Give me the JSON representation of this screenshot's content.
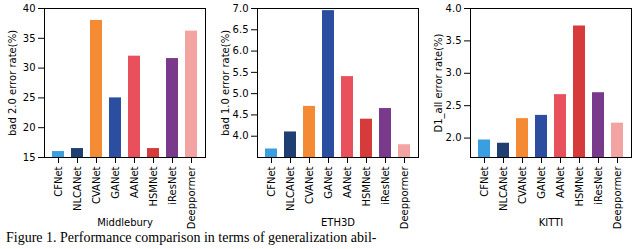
{
  "caption": "Figure 1. Performance comparison in terms of generalization abil-",
  "chart_data": [
    {
      "type": "bar",
      "x_label": "Middlebury",
      "y_label": "bad 2.0 error rate(%)",
      "categories": [
        "CFNet",
        "NLCANet",
        "CVANet",
        "GANet",
        "AANet",
        "HSMNet",
        "iResNet",
        "Deeppormer"
      ],
      "values": [
        16.0,
        16.5,
        38.0,
        25.0,
        32.0,
        16.5,
        31.6,
        36.2
      ],
      "colors": [
        "#3a9fe0",
        "#1f3f73",
        "#f58a35",
        "#2b4ea0",
        "#e8505b",
        "#d63a3a",
        "#7a3a8c",
        "#f4a3a3"
      ],
      "ylim": [
        15,
        40
      ],
      "yticks": [
        15,
        20,
        25,
        30,
        35,
        40
      ],
      "grid": false
    },
    {
      "type": "bar",
      "x_label": "ETH3D",
      "y_label": "bad 1.0 error rate(%)",
      "categories": [
        "CFNet",
        "NLCANet",
        "CVANet",
        "GANet",
        "AANet",
        "HSMNet",
        "iResNet",
        "Deeppormer"
      ],
      "values": [
        3.7,
        4.1,
        4.7,
        6.95,
        5.4,
        4.4,
        4.65,
        3.8
      ],
      "colors": [
        "#3a9fe0",
        "#1f3f73",
        "#f58a35",
        "#2b4ea0",
        "#e8505b",
        "#d63a3a",
        "#7a3a8c",
        "#f4a3a3"
      ],
      "ylim": [
        3.5,
        7.0
      ],
      "yticks": [
        {
          "value": 4,
          "label": "4.0"
        },
        {
          "value": 4.5,
          "label": "4.5"
        },
        {
          "value": 5,
          "label": "5.0"
        },
        {
          "value": 5.5,
          "label": "5.5"
        },
        {
          "value": 6,
          "label": "6.0"
        },
        {
          "value": 6.5,
          "label": "6.5"
        },
        {
          "value": 7,
          "label": "7.0"
        }
      ],
      "grid": false
    },
    {
      "type": "bar",
      "x_label": "KITTI",
      "y_label": "D1_all error rate(%)",
      "categories": [
        "CFNet",
        "NLCANet",
        "CVANet",
        "GANet",
        "AANet",
        "HSMNet",
        "iResNet",
        "Deeppormer"
      ],
      "values": [
        1.97,
        1.92,
        2.3,
        2.35,
        2.67,
        3.73,
        2.7,
        2.23
      ],
      "colors": [
        "#3a9fe0",
        "#1f3f73",
        "#f58a35",
        "#2b4ea0",
        "#e8505b",
        "#d63a3a",
        "#7a3a8c",
        "#f4a3a3"
      ],
      "ylim": [
        1.7,
        4.0
      ],
      "yticks": [
        {
          "value": 2,
          "label": "2.0"
        },
        {
          "value": 2.5,
          "label": "2.5"
        },
        {
          "value": 3,
          "label": "3.0"
        },
        {
          "value": 3.5,
          "label": "3.5"
        },
        {
          "value": 4,
          "label": "4.0"
        }
      ],
      "grid": false
    }
  ]
}
